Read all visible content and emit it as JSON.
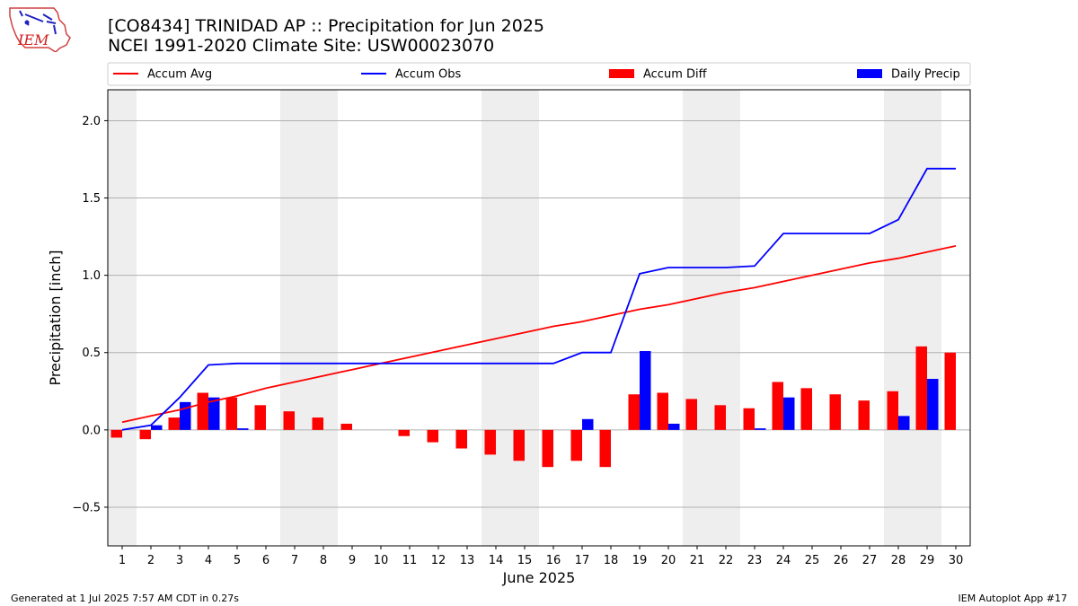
{
  "header": {
    "title": "[CO8434] TRINIDAD AP :: Precipitation for Jun 2025",
    "subtitle": "NCEI 1991-2020 Climate Site: USW00023070"
  },
  "logo": {
    "text": "IEM",
    "icon": "iem-logo-icon"
  },
  "footer": {
    "left": "Generated at 1 Jul 2025 7:57 AM CDT in 0.27s",
    "right": "IEM Autoplot App #17"
  },
  "colors": {
    "avg": "#ff0000",
    "obs": "#0000ff",
    "diff": "#ff0000",
    "daily": "#0000ff",
    "weekend": "#eeeeee",
    "grid": "#b0b0b0"
  },
  "chart_data": {
    "type": "bar",
    "xlabel": "June 2025",
    "ylabel": "Precipitation [inch]",
    "ylim": [
      -0.75,
      2.2
    ],
    "yticks": [
      -0.5,
      0.0,
      0.5,
      1.0,
      1.5,
      2.0
    ],
    "ytick_labels": [
      "−0.5",
      "0.0",
      "0.5",
      "1.0",
      "1.5",
      "2.0"
    ],
    "grid": "horizontal",
    "legend_position": "top",
    "categories": [
      "1",
      "2",
      "3",
      "4",
      "5",
      "6",
      "7",
      "8",
      "9",
      "10",
      "11",
      "12",
      "13",
      "14",
      "15",
      "16",
      "17",
      "18",
      "19",
      "20",
      "21",
      "22",
      "23",
      "24",
      "25",
      "26",
      "27",
      "28",
      "29",
      "30"
    ],
    "shaded_days": [
      1,
      7,
      8,
      14,
      15,
      21,
      22,
      28,
      29
    ],
    "series": [
      {
        "name": "Accum Avg",
        "type": "line",
        "values": [
          0.05,
          0.09,
          0.13,
          0.18,
          0.22,
          0.27,
          0.31,
          0.35,
          0.39,
          0.43,
          0.47,
          0.51,
          0.55,
          0.59,
          0.63,
          0.67,
          0.7,
          0.74,
          0.78,
          0.81,
          0.85,
          0.89,
          0.92,
          0.96,
          1.0,
          1.04,
          1.08,
          1.11,
          1.15,
          1.19
        ]
      },
      {
        "name": "Accum Obs",
        "type": "line",
        "values": [
          0.0,
          0.03,
          0.21,
          0.42,
          0.43,
          0.43,
          0.43,
          0.43,
          0.43,
          0.43,
          0.43,
          0.43,
          0.43,
          0.43,
          0.43,
          0.43,
          0.5,
          0.5,
          1.01,
          1.05,
          1.05,
          1.05,
          1.06,
          1.27,
          1.27,
          1.27,
          1.27,
          1.36,
          1.69,
          1.69
        ]
      },
      {
        "name": "Accum Diff",
        "type": "bar",
        "values": [
          -0.05,
          -0.06,
          0.08,
          0.24,
          0.21,
          0.16,
          0.12,
          0.08,
          0.04,
          0.0,
          -0.04,
          -0.08,
          -0.12,
          -0.16,
          -0.2,
          -0.24,
          -0.2,
          -0.24,
          0.23,
          0.24,
          0.2,
          0.16,
          0.14,
          0.31,
          0.27,
          0.23,
          0.19,
          0.25,
          0.54,
          0.5
        ]
      },
      {
        "name": "Daily Precip",
        "type": "bar",
        "values": [
          0.0,
          0.03,
          0.18,
          0.21,
          0.01,
          0.0,
          0.0,
          0.0,
          0.0,
          0.0,
          0.0,
          0.0,
          0.0,
          0.0,
          0.0,
          0.0,
          0.07,
          0.0,
          0.51,
          0.04,
          0.0,
          0.0,
          0.01,
          0.21,
          0.0,
          0.0,
          0.0,
          0.09,
          0.33,
          0.0
        ]
      }
    ]
  }
}
